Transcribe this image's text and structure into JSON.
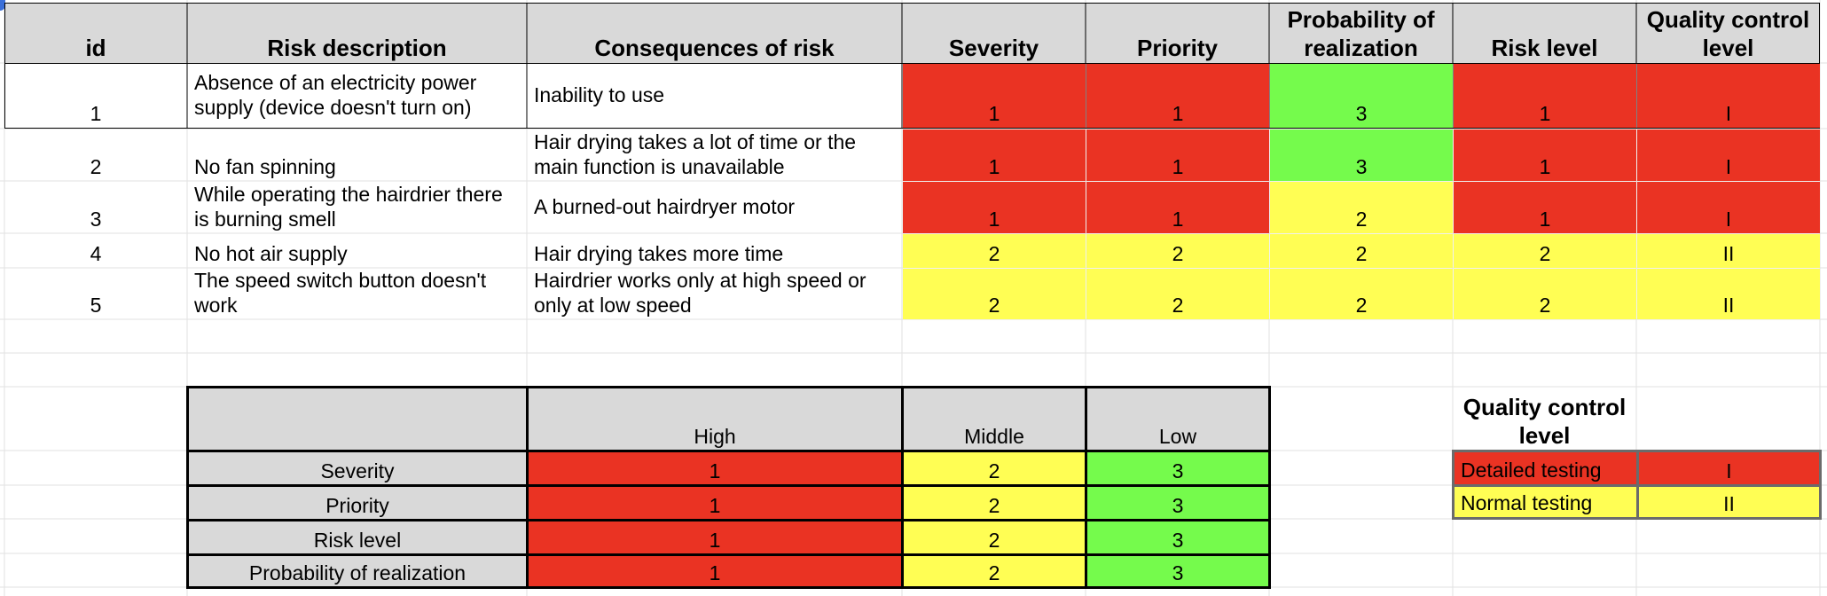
{
  "colors": {
    "red": "#ea3323",
    "green": "#75fb4c",
    "yellow": "#fffe54",
    "header_gray": "#d9d9d9"
  },
  "risk_table": {
    "headers": [
      "id",
      "Risk description",
      "Consequences of risk",
      "Severity",
      "Priority",
      "Probability of realization",
      "Risk level",
      "Quality control level"
    ],
    "rows": [
      {
        "id": "1",
        "description": "Absence of an electricity power supply (device doesn't turn on)",
        "consequence": "Inability to use",
        "severity": "1",
        "priority": "1",
        "probability": "3",
        "risk_level": "1",
        "qc_level": "I"
      },
      {
        "id": "2",
        "description": "No fan spinning",
        "consequence": "Hair drying takes a lot of time or the main function is unavailable",
        "severity": "1",
        "priority": "1",
        "probability": "3",
        "risk_level": "1",
        "qc_level": "I"
      },
      {
        "id": "3",
        "description": "While operating the hairdrier there is burning smell",
        "consequence": "A burned-out hairdryer motor",
        "severity": "1",
        "priority": "1",
        "probability": "2",
        "risk_level": "1",
        "qc_level": "I"
      },
      {
        "id": "4",
        "description": "No hot air supply",
        "consequence": "Hair drying takes more time",
        "severity": "2",
        "priority": "2",
        "probability": "2",
        "risk_level": "2",
        "qc_level": "II"
      },
      {
        "id": "5",
        "description": "The speed switch button doesn't work",
        "consequence": "Hairdrier works only at high speed or only at low speed",
        "severity": "2",
        "priority": "2",
        "probability": "2",
        "risk_level": "2",
        "qc_level": "II"
      }
    ]
  },
  "scale_table": {
    "columns": [
      "High",
      "Middle",
      "Low"
    ],
    "rows": [
      {
        "label": "Severity",
        "high": "1",
        "middle": "2",
        "low": "3"
      },
      {
        "label": "Priority",
        "high": "1",
        "middle": "2",
        "low": "3"
      },
      {
        "label": "Risk level",
        "high": "1",
        "middle": "2",
        "low": "3"
      },
      {
        "label": "Probability of realization",
        "high": "1",
        "middle": "2",
        "low": "3"
      }
    ]
  },
  "qc_legend": {
    "title": "Quality control level",
    "rows": [
      {
        "label": "Detailed testing",
        "level": "I"
      },
      {
        "label": "Normal testing",
        "level": "II"
      }
    ]
  }
}
